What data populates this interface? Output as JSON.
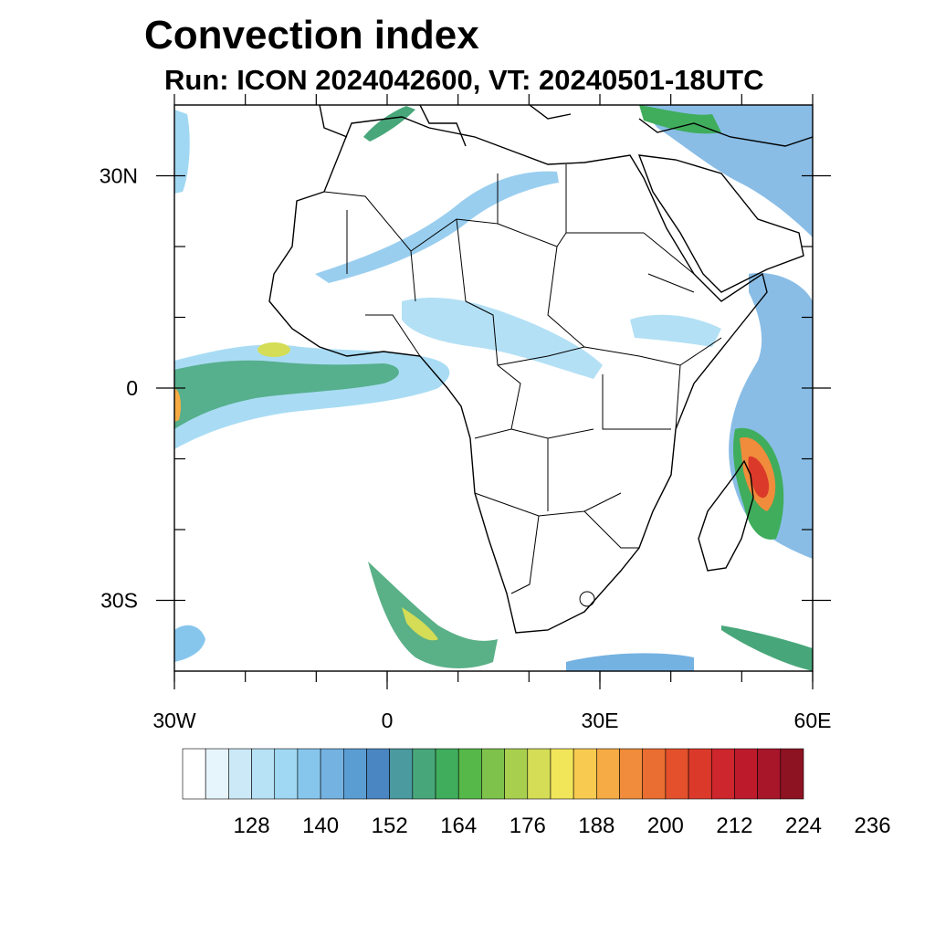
{
  "title": "Convection index",
  "subtitle": "Run: ICON 2024042600,  VT: 20240501-18UTC",
  "map": {
    "lon_range": [
      -30,
      60
    ],
    "lat_range": [
      -40,
      40
    ],
    "y_tick_labels": [
      {
        "lat": 30,
        "label": "30N"
      },
      {
        "lat": 0,
        "label": "0"
      },
      {
        "lat": -30,
        "label": "30S"
      }
    ],
    "x_tick_labels": [
      {
        "lon": -30,
        "label": "30W"
      },
      {
        "lon": 0,
        "label": "0"
      },
      {
        "lon": 30,
        "label": "30E"
      },
      {
        "lon": 60,
        "label": "60E"
      }
    ],
    "minor_lat_ticks": [
      -30,
      -20,
      -10,
      0,
      10,
      20,
      30
    ],
    "minor_lon_ticks": [
      -30,
      -20,
      -10,
      0,
      10,
      20,
      30,
      40,
      50,
      60
    ]
  },
  "colorbar": {
    "colors": [
      "#ffffff",
      "#e6f4fb",
      "#cce9f7",
      "#b7e1f5",
      "#a0d8f3",
      "#87c6ec",
      "#74b2e2",
      "#5a9dd3",
      "#4a86c2",
      "#4a9aa0",
      "#48a77a",
      "#3fad5c",
      "#56b848",
      "#7ec24b",
      "#a9cf4e",
      "#d4dd55",
      "#f1e55a",
      "#f8cb50",
      "#f6ab44",
      "#f08c3b",
      "#ea6d31",
      "#e3502b",
      "#db3a2b",
      "#cd262d",
      "#bd1b2c",
      "#a8162a",
      "#8e1322"
    ],
    "tick_labels": [
      "128",
      "140",
      "152",
      "164",
      "176",
      "188",
      "200",
      "212",
      "224",
      "236"
    ]
  }
}
